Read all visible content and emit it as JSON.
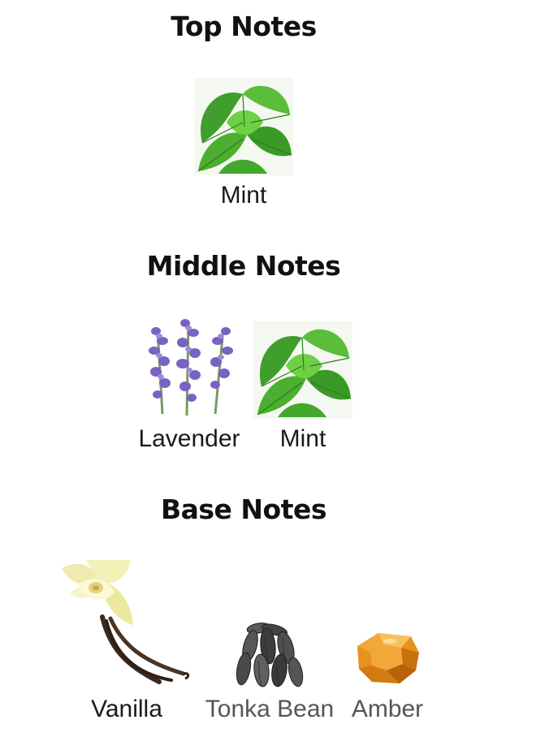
{
  "sections": [
    {
      "title": "Top Notes",
      "notes": [
        {
          "label": "Mint",
          "icon": "mint-icon"
        }
      ]
    },
    {
      "title": "Middle Notes",
      "notes": [
        {
          "label": "Lavender",
          "icon": "lavender-icon"
        },
        {
          "label": "Mint",
          "icon": "mint-icon"
        }
      ]
    },
    {
      "title": "Base Notes",
      "notes": [
        {
          "label": "Vanilla",
          "icon": "vanilla-icon"
        },
        {
          "label": "Tonka Bean",
          "icon": "tonka-bean-icon"
        },
        {
          "label": "Amber",
          "icon": "amber-icon"
        }
      ]
    }
  ],
  "colors": {
    "mint": "#4caf2f",
    "lavender": "#7a62c2",
    "vanilla": "#f3f0b0",
    "tonka": "#4a4a4a",
    "amber": "#e8921e"
  }
}
